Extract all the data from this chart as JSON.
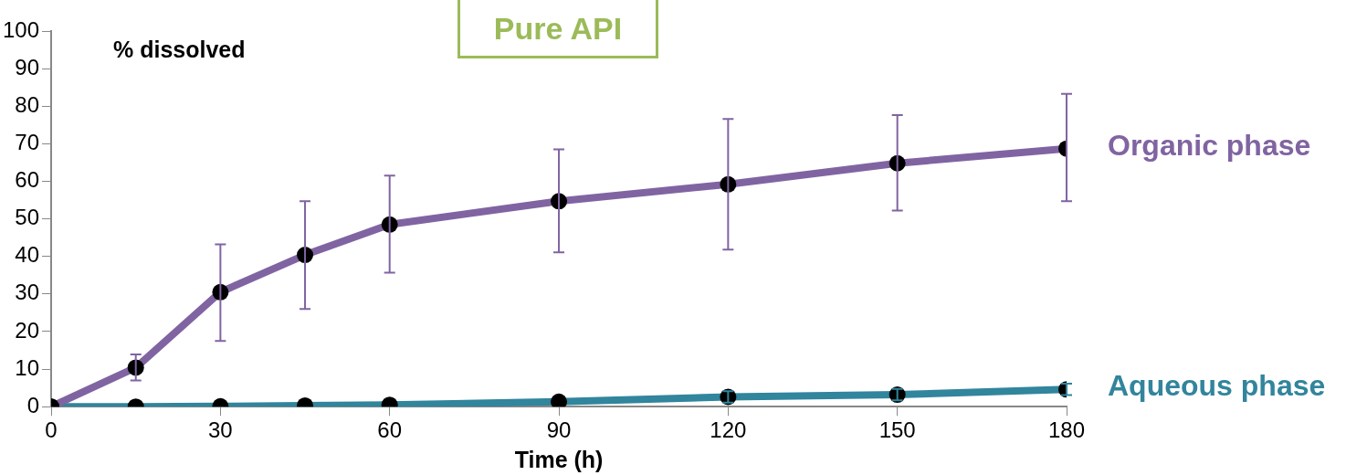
{
  "chart_data": {
    "type": "line",
    "title": "Pure API",
    "xlabel": "Time (h)",
    "ylabel": "% dissolved",
    "x": [
      0,
      15,
      30,
      45,
      60,
      90,
      120,
      150,
      180
    ],
    "series": [
      {
        "name": "Organic phase",
        "color": "#8064a2",
        "values": [
          0,
          10.4,
          30.5,
          40.4,
          48.5,
          54.7,
          59.2,
          64.8,
          68.7
        ],
        "errors": [
          null,
          [
            7,
            13.9
          ],
          [
            17.5,
            43.2
          ],
          [
            26,
            54.7
          ],
          [
            35.7,
            61.5
          ],
          [
            41.1,
            68.5
          ],
          [
            41.8,
            76.6
          ],
          [
            52.2,
            77.6
          ],
          [
            54.7,
            83.3
          ]
        ]
      },
      {
        "name": "Aqueous phase",
        "color": "#31859c",
        "values": [
          0,
          0,
          0.1,
          0.3,
          0.5,
          1.3,
          2.6,
          3.2,
          4.6
        ],
        "errors": [
          null,
          null,
          null,
          null,
          null,
          null,
          [
            1.1,
            4.1
          ],
          [
            1.7,
            4.7
          ],
          [
            3.1,
            6.1
          ]
        ]
      }
    ],
    "xlim": [
      0,
      180
    ],
    "xticks": [
      0,
      30,
      60,
      90,
      120,
      150,
      180
    ],
    "ylim": [
      0,
      100
    ],
    "yticks": [
      0,
      10,
      20,
      30,
      40,
      50,
      60,
      70,
      80,
      90,
      100
    ],
    "grid": false,
    "legend": false,
    "marker": "circle",
    "line_style": "solid"
  }
}
